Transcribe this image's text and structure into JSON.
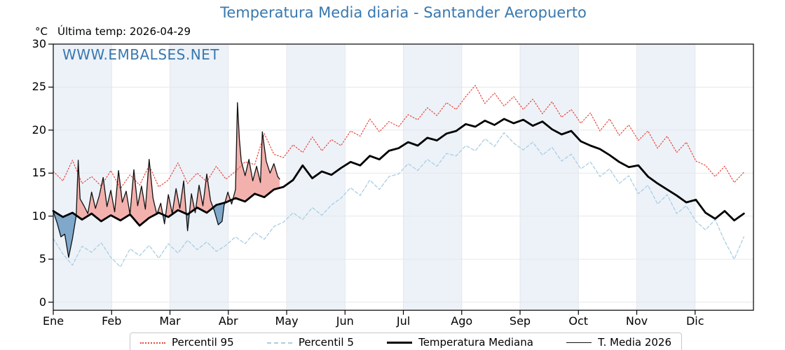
{
  "header": {
    "title": "Temperatura Media diaria - Santander Aeropuerto",
    "unit_label": "°C",
    "last_temp_label": "Última temp: 2026-04-29"
  },
  "watermark": "WWW.EMBALSES.NET",
  "legend": {
    "items": [
      {
        "label": "Percentil 95",
        "style": "dotted-red"
      },
      {
        "label": "Percentil 5",
        "style": "dashed-blue"
      },
      {
        "label": "Temperatura Mediana",
        "style": "thick-black"
      },
      {
        "label": "T. Media 2026",
        "style": "thin-black"
      }
    ]
  },
  "chart_data": {
    "type": "line",
    "title": "Temperatura Media diaria - Santander Aeropuerto",
    "xlabel": "",
    "ylabel": "°C",
    "x_axis": {
      "months": [
        "Ene",
        "Feb",
        "Mar",
        "Abr",
        "May",
        "Jun",
        "Jul",
        "Ago",
        "Sep",
        "Oct",
        "Nov",
        "Dic"
      ]
    },
    "y_axis": {
      "ticks": [
        0,
        5,
        10,
        15,
        20,
        25,
        30
      ],
      "range": [
        -0.94,
        30
      ]
    },
    "alt_band_months": [
      0,
      2,
      4,
      6,
      8,
      10
    ],
    "grid": true,
    "legend_position": "bottom",
    "colors": {
      "p95": "#e8483e",
      "p5": "#a9cee3",
      "median": "#000000",
      "t2026": "#111111",
      "fill_above": "#f3b1ad",
      "fill_below": "#7fa8cb",
      "band": "#edf2f8",
      "grid": "#e4e7ec",
      "axis": "#000000",
      "accent_blue": "#3878af"
    },
    "series": [
      {
        "id": "p95",
        "name": "Percentil 95",
        "style": "dotted",
        "width": 1.2,
        "day_step": 5,
        "values": [
          15.2,
          14.1,
          16.5,
          13.8,
          14.6,
          13.5,
          15.3,
          13.2,
          14.8,
          13.6,
          15.9,
          13.4,
          14.2,
          16.2,
          13.8,
          15.0,
          14.0,
          15.8,
          14.3,
          15.2,
          16.3,
          16.0,
          19.6,
          17.2,
          16.8,
          18.3,
          17.4,
          19.2,
          17.6,
          18.9,
          18.2,
          19.9,
          19.3,
          21.3,
          19.8,
          21.0,
          20.4,
          21.8,
          21.2,
          22.6,
          21.7,
          23.2,
          22.4,
          23.9,
          25.2,
          23.1,
          24.3,
          22.8,
          23.9,
          22.4,
          23.6,
          21.9,
          23.3,
          21.5,
          22.4,
          20.8,
          22.0,
          19.9,
          21.3,
          19.4,
          20.6,
          18.8,
          19.9,
          17.9,
          19.3,
          17.4,
          18.6,
          16.4,
          15.9,
          14.6,
          15.8,
          13.9,
          15.1
        ]
      },
      {
        "id": "p5",
        "name": "Percentil 5",
        "style": "dashed",
        "width": 1.3,
        "day_step": 5,
        "values": [
          7.4,
          5.6,
          4.3,
          6.5,
          5.8,
          6.9,
          5.2,
          4.1,
          6.2,
          5.4,
          6.6,
          5.1,
          6.8,
          5.7,
          7.2,
          6.1,
          7.0,
          5.9,
          6.6,
          7.6,
          6.8,
          8.1,
          7.3,
          8.8,
          9.3,
          10.4,
          9.6,
          11.0,
          10.1,
          11.3,
          12.1,
          13.3,
          12.4,
          14.2,
          13.1,
          14.6,
          14.9,
          16.1,
          15.3,
          16.6,
          15.8,
          17.3,
          17.0,
          18.2,
          17.6,
          19.0,
          18.1,
          19.7,
          18.5,
          17.7,
          18.6,
          17.1,
          18.0,
          16.4,
          17.2,
          15.5,
          16.3,
          14.6,
          15.5,
          13.8,
          14.7,
          12.6,
          13.6,
          11.4,
          12.5,
          10.3,
          11.2,
          9.4,
          8.4,
          9.6,
          7.1,
          5.0,
          7.6
        ]
      },
      {
        "id": "median",
        "name": "Temperatura Mediana",
        "style": "solid",
        "width": 2.8,
        "day_step": 5,
        "values": [
          10.6,
          9.9,
          10.4,
          9.6,
          10.3,
          9.4,
          10.1,
          9.5,
          10.2,
          8.9,
          9.8,
          10.4,
          9.9,
          10.7,
          10.2,
          11.0,
          10.4,
          11.3,
          11.6,
          12.1,
          11.7,
          12.6,
          12.2,
          13.1,
          13.4,
          14.2,
          15.9,
          14.4,
          15.2,
          14.8,
          15.6,
          16.3,
          15.9,
          17.0,
          16.6,
          17.6,
          17.9,
          18.6,
          18.2,
          19.1,
          18.8,
          19.6,
          19.9,
          20.7,
          20.4,
          21.1,
          20.6,
          21.3,
          20.8,
          21.2,
          20.5,
          21.0,
          20.1,
          19.5,
          19.9,
          18.7,
          18.2,
          17.8,
          17.1,
          16.3,
          15.7,
          15.9,
          14.6,
          13.8,
          13.1,
          12.4,
          11.6,
          11.9,
          10.4,
          9.7,
          10.6,
          9.5,
          10.3
        ]
      },
      {
        "id": "t2026",
        "name": "T. Media 2026",
        "style": "solid",
        "width": 1.3,
        "points": [
          [
            0,
            10.5
          ],
          [
            2,
            9.2
          ],
          [
            4,
            7.6
          ],
          [
            6,
            7.9
          ],
          [
            8,
            5.2
          ],
          [
            10,
            7.4
          ],
          [
            12,
            10.1
          ],
          [
            13,
            16.5
          ],
          [
            14,
            12.0
          ],
          [
            16,
            11.2
          ],
          [
            18,
            10.3
          ],
          [
            20,
            12.8
          ],
          [
            22,
            10.9
          ],
          [
            24,
            12.4
          ],
          [
            26,
            14.5
          ],
          [
            28,
            11.1
          ],
          [
            30,
            13.0
          ],
          [
            32,
            10.5
          ],
          [
            34,
            15.3
          ],
          [
            36,
            11.6
          ],
          [
            38,
            12.9
          ],
          [
            40,
            10.2
          ],
          [
            42,
            15.4
          ],
          [
            44,
            11.2
          ],
          [
            46,
            13.5
          ],
          [
            48,
            10.8
          ],
          [
            50,
            16.6
          ],
          [
            52,
            12.1
          ],
          [
            54,
            10.2
          ],
          [
            56,
            11.5
          ],
          [
            58,
            9.1
          ],
          [
            60,
            12.5
          ],
          [
            62,
            10.3
          ],
          [
            64,
            13.2
          ],
          [
            66,
            10.9
          ],
          [
            68,
            14.1
          ],
          [
            70,
            8.3
          ],
          [
            72,
            12.6
          ],
          [
            74,
            10.4
          ],
          [
            76,
            13.6
          ],
          [
            78,
            11.2
          ],
          [
            80,
            14.9
          ],
          [
            82,
            11.8
          ],
          [
            84,
            10.6
          ],
          [
            86,
            9.0
          ],
          [
            88,
            9.4
          ],
          [
            89,
            11.2
          ],
          [
            91,
            12.8
          ],
          [
            93,
            11.4
          ],
          [
            95,
            13.1
          ],
          [
            96,
            23.2
          ],
          [
            97,
            19.0
          ],
          [
            98,
            16.4
          ],
          [
            100,
            14.7
          ],
          [
            102,
            16.6
          ],
          [
            104,
            14.1
          ],
          [
            106,
            15.8
          ],
          [
            108,
            13.9
          ],
          [
            109,
            19.8
          ],
          [
            111,
            16.4
          ],
          [
            113,
            15.0
          ],
          [
            115,
            16.1
          ],
          [
            117,
            14.6
          ],
          [
            118,
            14.3
          ]
        ]
      }
    ],
    "fill_between": {
      "series_a": "t2026",
      "series_b": "median",
      "above_color_key": "fill_above",
      "below_color_key": "fill_below",
      "end_day": 118
    }
  }
}
